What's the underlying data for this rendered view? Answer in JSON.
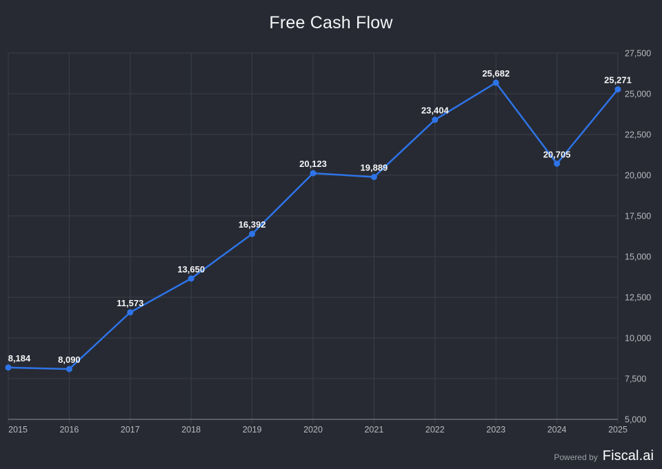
{
  "page": {
    "title": "Free Cash Flow",
    "background": "#272a33",
    "footer": {
      "powered_by": "Powered by",
      "brand": "Fiscal.ai"
    }
  },
  "chart_data": {
    "type": "line",
    "title": "Free Cash Flow",
    "x": [
      2015,
      2016,
      2017,
      2018,
      2019,
      2020,
      2021,
      2022,
      2023,
      2024,
      2025
    ],
    "series": [
      {
        "name": "Free Cash Flow",
        "values": [
          8184,
          8090,
          11573,
          13650,
          16392,
          20123,
          19889,
          23404,
          25682,
          20705,
          25271
        ]
      }
    ],
    "point_labels": [
      "8,184",
      "8,090",
      "11,573",
      "13,650",
      "16,392",
      "20,123",
      "19,889",
      "23,404",
      "25,682",
      "20,705",
      "25,271"
    ],
    "y_ticks": [
      5000,
      7500,
      10000,
      12500,
      15000,
      17500,
      20000,
      22500,
      25000,
      27500
    ],
    "y_tick_labels": [
      "5,000",
      "7,500",
      "10,000",
      "12,500",
      "15,000",
      "17,500",
      "20,000",
      "22,500",
      "25,000",
      "27,500"
    ],
    "ylim": [
      5000,
      27500
    ],
    "xlabel": "",
    "ylabel": "",
    "grid": true,
    "legend_position": "none",
    "y_axis_side": "right",
    "colors": {
      "line": "#2e74e8",
      "point": "#2e74e8",
      "grid": "#3b3e46",
      "axis": "#8e9196",
      "tick_text": "#b8bac0",
      "label_text": "#f5f6f7",
      "background": "#272a33"
    }
  }
}
